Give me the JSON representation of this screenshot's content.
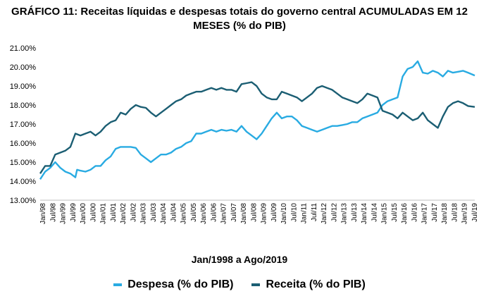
{
  "chart_data": {
    "type": "line",
    "title": "GRÁFICO 11: Receitas líquidas e despesas totais do governo central ACUMULADAS EM 12 MESES (% do PIB)",
    "xlabel": "Jan/1998 a Ago/2019",
    "ylabel": "",
    "ylim": [
      13.0,
      21.0
    ],
    "y_ticks": [
      "13.00%",
      "14.00%",
      "15.00%",
      "16.00%",
      "17.00%",
      "18.00%",
      "19.00%",
      "20.00%",
      "21.00%"
    ],
    "x_ticks": [
      "Jan/98",
      "Jul/98",
      "Jan/99",
      "Jul/99",
      "Jan/00",
      "Jul/00",
      "Jan/01",
      "Jul/01",
      "Jan/02",
      "Jul/02",
      "Jan/03",
      "Jul/03",
      "Jan/04",
      "Jul/04",
      "Jan/05",
      "Jul/05",
      "Jan/06",
      "Jul/06",
      "Jan/07",
      "Jul/07",
      "Jan/08",
      "Jul/08",
      "Jan/09",
      "Jul/09",
      "Jan/10",
      "Jul/10",
      "Jan/11",
      "Jul/11",
      "Jan/12",
      "Jul/12",
      "Jan/13",
      "Jul/13",
      "Jan/14",
      "Jul/14",
      "Jan/15",
      "Jul/15",
      "Jan/16",
      "Jul/16",
      "Jan/17",
      "Jul/17",
      "Jan/18",
      "Jul/18",
      "Jan/19",
      "Jul/19"
    ],
    "x_range": [
      "1998-01",
      "2019-08"
    ],
    "grid": false,
    "legend": "bottom",
    "series": [
      {
        "name": "Despesa (% do PIB)",
        "color": "#29abe2",
        "points": [
          [
            "1998-01",
            14.1
          ],
          [
            "1998-04",
            14.5
          ],
          [
            "1998-07",
            14.7
          ],
          [
            "1998-10",
            15.0
          ],
          [
            "1999-01",
            14.7
          ],
          [
            "1999-04",
            14.5
          ],
          [
            "1999-07",
            14.4
          ],
          [
            "1999-10",
            14.2
          ],
          [
            "1999-11",
            14.6
          ],
          [
            "2000-01",
            14.55
          ],
          [
            "2000-04",
            14.5
          ],
          [
            "2000-07",
            14.6
          ],
          [
            "2000-10",
            14.8
          ],
          [
            "2001-01",
            14.8
          ],
          [
            "2001-04",
            15.1
          ],
          [
            "2001-07",
            15.3
          ],
          [
            "2001-10",
            15.7
          ],
          [
            "2002-01",
            15.8
          ],
          [
            "2002-04",
            15.8
          ],
          [
            "2002-07",
            15.8
          ],
          [
            "2002-10",
            15.75
          ],
          [
            "2003-01",
            15.4
          ],
          [
            "2003-04",
            15.2
          ],
          [
            "2003-07",
            15.0
          ],
          [
            "2003-10",
            15.2
          ],
          [
            "2004-01",
            15.4
          ],
          [
            "2004-04",
            15.4
          ],
          [
            "2004-07",
            15.5
          ],
          [
            "2004-10",
            15.7
          ],
          [
            "2005-01",
            15.8
          ],
          [
            "2005-04",
            16.0
          ],
          [
            "2005-07",
            16.1
          ],
          [
            "2005-10",
            16.5
          ],
          [
            "2006-01",
            16.5
          ],
          [
            "2006-04",
            16.6
          ],
          [
            "2006-07",
            16.7
          ],
          [
            "2006-10",
            16.6
          ],
          [
            "2007-01",
            16.7
          ],
          [
            "2007-04",
            16.65
          ],
          [
            "2007-07",
            16.7
          ],
          [
            "2007-10",
            16.6
          ],
          [
            "2008-01",
            16.9
          ],
          [
            "2008-04",
            16.6
          ],
          [
            "2008-07",
            16.4
          ],
          [
            "2008-10",
            16.2
          ],
          [
            "2009-01",
            16.5
          ],
          [
            "2009-04",
            16.9
          ],
          [
            "2009-07",
            17.3
          ],
          [
            "2009-10",
            17.6
          ],
          [
            "2010-01",
            17.3
          ],
          [
            "2010-04",
            17.4
          ],
          [
            "2010-07",
            17.4
          ],
          [
            "2010-10",
            17.2
          ],
          [
            "2011-01",
            16.9
          ],
          [
            "2011-04",
            16.8
          ],
          [
            "2011-07",
            16.7
          ],
          [
            "2011-10",
            16.6
          ],
          [
            "2012-01",
            16.7
          ],
          [
            "2012-04",
            16.8
          ],
          [
            "2012-07",
            16.9
          ],
          [
            "2012-10",
            16.9
          ],
          [
            "2013-01",
            16.95
          ],
          [
            "2013-04",
            17.0
          ],
          [
            "2013-07",
            17.1
          ],
          [
            "2013-10",
            17.1
          ],
          [
            "2014-01",
            17.3
          ],
          [
            "2014-04",
            17.4
          ],
          [
            "2014-07",
            17.5
          ],
          [
            "2014-10",
            17.6
          ],
          [
            "2015-01",
            18.0
          ],
          [
            "2015-04",
            18.2
          ],
          [
            "2015-07",
            18.3
          ],
          [
            "2015-10",
            18.4
          ],
          [
            "2016-01",
            19.5
          ],
          [
            "2016-04",
            19.9
          ],
          [
            "2016-07",
            20.0
          ],
          [
            "2016-10",
            20.3
          ],
          [
            "2017-01",
            19.7
          ],
          [
            "2017-04",
            19.65
          ],
          [
            "2017-07",
            19.8
          ],
          [
            "2017-10",
            19.7
          ],
          [
            "2018-01",
            19.5
          ],
          [
            "2018-04",
            19.8
          ],
          [
            "2018-07",
            19.7
          ],
          [
            "2018-10",
            19.75
          ],
          [
            "2019-01",
            19.8
          ],
          [
            "2019-04",
            19.7
          ],
          [
            "2019-08",
            19.55
          ]
        ]
      },
      {
        "name": "Receita (% do PIB)",
        "color": "#1b5e73",
        "points": [
          [
            "1998-01",
            14.4
          ],
          [
            "1998-04",
            14.8
          ],
          [
            "1998-07",
            14.8
          ],
          [
            "1998-10",
            15.4
          ],
          [
            "1999-01",
            15.5
          ],
          [
            "1999-04",
            15.6
          ],
          [
            "1999-07",
            15.8
          ],
          [
            "1999-10",
            16.5
          ],
          [
            "2000-01",
            16.4
          ],
          [
            "2000-04",
            16.5
          ],
          [
            "2000-07",
            16.6
          ],
          [
            "2000-10",
            16.4
          ],
          [
            "2001-01",
            16.6
          ],
          [
            "2001-04",
            16.9
          ],
          [
            "2001-07",
            17.1
          ],
          [
            "2001-10",
            17.2
          ],
          [
            "2002-01",
            17.6
          ],
          [
            "2002-04",
            17.5
          ],
          [
            "2002-07",
            17.8
          ],
          [
            "2002-10",
            18.0
          ],
          [
            "2003-01",
            17.9
          ],
          [
            "2003-04",
            17.85
          ],
          [
            "2003-07",
            17.6
          ],
          [
            "2003-10",
            17.4
          ],
          [
            "2004-01",
            17.6
          ],
          [
            "2004-04",
            17.8
          ],
          [
            "2004-07",
            18.0
          ],
          [
            "2004-10",
            18.2
          ],
          [
            "2005-01",
            18.3
          ],
          [
            "2005-04",
            18.5
          ],
          [
            "2005-07",
            18.6
          ],
          [
            "2005-10",
            18.7
          ],
          [
            "2006-01",
            18.7
          ],
          [
            "2006-04",
            18.8
          ],
          [
            "2006-07",
            18.9
          ],
          [
            "2006-10",
            18.8
          ],
          [
            "2007-01",
            18.9
          ],
          [
            "2007-04",
            18.8
          ],
          [
            "2007-07",
            18.8
          ],
          [
            "2007-10",
            18.7
          ],
          [
            "2008-01",
            19.1
          ],
          [
            "2008-04",
            19.15
          ],
          [
            "2008-07",
            19.2
          ],
          [
            "2008-10",
            19.0
          ],
          [
            "2009-01",
            18.6
          ],
          [
            "2009-04",
            18.4
          ],
          [
            "2009-07",
            18.3
          ],
          [
            "2009-10",
            18.3
          ],
          [
            "2010-01",
            18.7
          ],
          [
            "2010-04",
            18.6
          ],
          [
            "2010-07",
            18.5
          ],
          [
            "2010-10",
            18.4
          ],
          [
            "2011-01",
            18.2
          ],
          [
            "2011-04",
            18.4
          ],
          [
            "2011-07",
            18.6
          ],
          [
            "2011-10",
            18.9
          ],
          [
            "2012-01",
            19.0
          ],
          [
            "2012-04",
            18.9
          ],
          [
            "2012-07",
            18.8
          ],
          [
            "2012-10",
            18.6
          ],
          [
            "2013-01",
            18.4
          ],
          [
            "2013-04",
            18.3
          ],
          [
            "2013-07",
            18.2
          ],
          [
            "2013-10",
            18.1
          ],
          [
            "2014-01",
            18.3
          ],
          [
            "2014-04",
            18.6
          ],
          [
            "2014-07",
            18.5
          ],
          [
            "2014-10",
            18.4
          ],
          [
            "2015-01",
            17.7
          ],
          [
            "2015-04",
            17.6
          ],
          [
            "2015-07",
            17.5
          ],
          [
            "2015-10",
            17.3
          ],
          [
            "2016-01",
            17.6
          ],
          [
            "2016-04",
            17.4
          ],
          [
            "2016-07",
            17.2
          ],
          [
            "2016-10",
            17.3
          ],
          [
            "2017-01",
            17.6
          ],
          [
            "2017-04",
            17.2
          ],
          [
            "2017-07",
            17.0
          ],
          [
            "2017-10",
            16.8
          ],
          [
            "2018-01",
            17.4
          ],
          [
            "2018-04",
            17.9
          ],
          [
            "2018-07",
            18.1
          ],
          [
            "2018-10",
            18.2
          ],
          [
            "2019-01",
            18.1
          ],
          [
            "2019-04",
            17.95
          ],
          [
            "2019-08",
            17.9
          ]
        ]
      }
    ]
  }
}
